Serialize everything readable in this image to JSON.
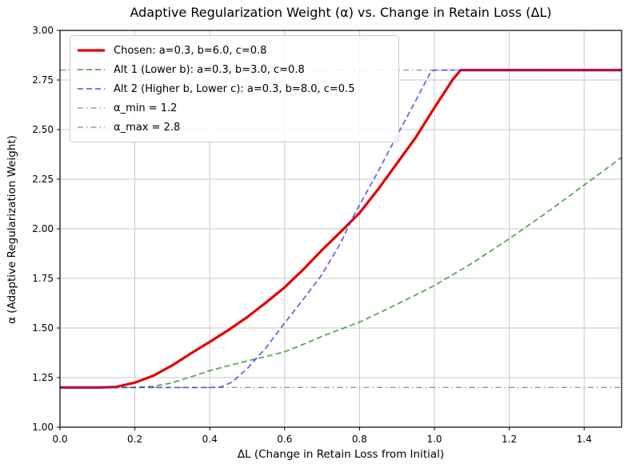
{
  "chart_data": {
    "type": "line",
    "title": "Adaptive Regularization Weight (α) vs. Change in Retain Loss (ΔL)",
    "xlabel": "ΔL (Change in Retain Loss from Initial)",
    "ylabel": "α (Adaptive Regularization Weight)",
    "xlim": [
      0.0,
      1.5
    ],
    "ylim": [
      1.0,
      3.0
    ],
    "grid": true,
    "legend_position": "upper left",
    "xticks": [
      0.0,
      0.2,
      0.4,
      0.6,
      0.8,
      1.0,
      1.2,
      1.4
    ],
    "xtick_labels": [
      "0.0",
      "0.2",
      "0.4",
      "0.6",
      "0.8",
      "1.0",
      "1.2",
      "1.4"
    ],
    "yticks": [
      1.0,
      1.25,
      1.5,
      1.75,
      2.0,
      2.25,
      2.5,
      2.75,
      3.0
    ],
    "ytick_labels": [
      "1.00",
      "1.25",
      "1.50",
      "1.75",
      "2.00",
      "2.25",
      "2.50",
      "2.75",
      "3.00"
    ],
    "alpha_min": 1.2,
    "alpha_max": 2.8,
    "series": [
      {
        "name": "chosen",
        "legend_label": "Chosen: a=0.3, b=6.0, c=0.8",
        "color": "#e50000",
        "linewidth": 3.2,
        "dash": "",
        "opacity": 1,
        "points": [
          [
            0.0,
            1.2
          ],
          [
            0.05,
            1.2
          ],
          [
            0.1,
            1.2
          ],
          [
            0.15,
            1.203
          ],
          [
            0.2,
            1.225
          ],
          [
            0.25,
            1.26
          ],
          [
            0.3,
            1.312
          ],
          [
            0.35,
            1.372
          ],
          [
            0.4,
            1.43
          ],
          [
            0.45,
            1.49
          ],
          [
            0.5,
            1.555
          ],
          [
            0.55,
            1.628
          ],
          [
            0.6,
            1.705
          ],
          [
            0.65,
            1.795
          ],
          [
            0.7,
            1.893
          ],
          [
            0.75,
            1.985
          ],
          [
            0.8,
            2.08
          ],
          [
            0.85,
            2.2
          ],
          [
            0.9,
            2.33
          ],
          [
            0.95,
            2.46
          ],
          [
            1.0,
            2.61
          ],
          [
            1.05,
            2.755
          ],
          [
            1.07,
            2.8
          ],
          [
            1.5,
            2.8
          ]
        ]
      },
      {
        "name": "alt1",
        "legend_label": "Alt 1 (Lower b): a=0.3, b=3.0, c=0.8",
        "color": "#1e8c1e",
        "linewidth": 1.8,
        "dash": "7 4",
        "opacity": 0.75,
        "points": [
          [
            0.0,
            1.2
          ],
          [
            0.1,
            1.2
          ],
          [
            0.2,
            1.201
          ],
          [
            0.25,
            1.206
          ],
          [
            0.3,
            1.224
          ],
          [
            0.35,
            1.254
          ],
          [
            0.4,
            1.285
          ],
          [
            0.45,
            1.31
          ],
          [
            0.5,
            1.334
          ],
          [
            0.55,
            1.356
          ],
          [
            0.6,
            1.38
          ],
          [
            0.65,
            1.418
          ],
          [
            0.7,
            1.458
          ],
          [
            0.75,
            1.494
          ],
          [
            0.8,
            1.53
          ],
          [
            0.85,
            1.574
          ],
          [
            0.9,
            1.62
          ],
          [
            0.95,
            1.666
          ],
          [
            1.0,
            1.714
          ],
          [
            1.1,
            1.826
          ],
          [
            1.2,
            1.95
          ],
          [
            1.3,
            2.082
          ],
          [
            1.4,
            2.22
          ],
          [
            1.5,
            2.36
          ]
        ]
      },
      {
        "name": "alt2",
        "legend_label": "Alt 2 (Higher b, Lower c): a=0.3, b=8.0, c=0.5",
        "color": "#3333ee",
        "linewidth": 1.8,
        "dash": "7 4",
        "opacity": 0.75,
        "points": [
          [
            0.0,
            1.2
          ],
          [
            0.1,
            1.2
          ],
          [
            0.2,
            1.2
          ],
          [
            0.3,
            1.2
          ],
          [
            0.4,
            1.2
          ],
          [
            0.43,
            1.203
          ],
          [
            0.46,
            1.228
          ],
          [
            0.5,
            1.295
          ],
          [
            0.55,
            1.4
          ],
          [
            0.6,
            1.525
          ],
          [
            0.65,
            1.645
          ],
          [
            0.7,
            1.77
          ],
          [
            0.75,
            1.93
          ],
          [
            0.78,
            2.05
          ],
          [
            0.8,
            2.12
          ],
          [
            0.85,
            2.29
          ],
          [
            0.9,
            2.47
          ],
          [
            0.95,
            2.645
          ],
          [
            0.99,
            2.79
          ],
          [
            1.0,
            2.8
          ],
          [
            1.5,
            2.8
          ]
        ]
      },
      {
        "name": "alpha-min",
        "legend_label": "α_min = 1.2",
        "color": "#666666",
        "linewidth": 1.3,
        "dash": "7 4 1.5 4",
        "opacity": 0.75,
        "points": [
          [
            0.0,
            1.2
          ],
          [
            1.5,
            1.2
          ]
        ]
      },
      {
        "name": "alpha-max",
        "legend_label": "α_max = 2.8",
        "color": "#666666",
        "linewidth": 1.3,
        "dash": "7 4 1.5 4",
        "opacity": 0.75,
        "points": [
          [
            0.0,
            2.8
          ],
          [
            1.5,
            2.8
          ]
        ]
      }
    ],
    "draw_order": [
      "alpha-min",
      "alpha-max",
      "alt1",
      "chosen",
      "alt2"
    ]
  }
}
